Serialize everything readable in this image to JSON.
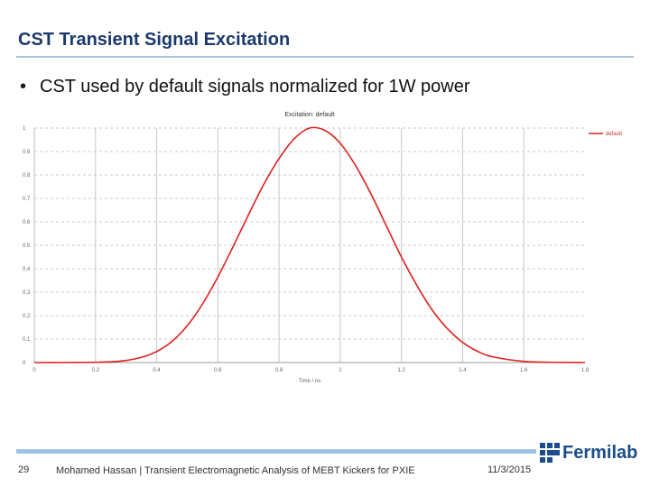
{
  "slide": {
    "title": "CST Transient Signal Excitation",
    "bullet": "CST used by default signals normalized for 1W power",
    "bullet_marker": "•"
  },
  "footer": {
    "slide_number": "29",
    "text": "Mohamed Hassan | Transient Electromagnetic Analysis of MEBT Kickers for PXIE",
    "date": "11/3/2015",
    "logo_text": "Fermilab",
    "logo_color": "#1a4d8c"
  },
  "chart_data": {
    "type": "line",
    "title": "Excitation: default",
    "xlabel": "Time / ns",
    "ylabel": "",
    "xlim": [
      0,
      1.8
    ],
    "ylim": [
      0,
      1
    ],
    "x_ticks": [
      "0",
      "0.2",
      "0.4",
      "0.6",
      "0.8",
      "1",
      "1.2",
      "1.4",
      "1.6",
      "1.8"
    ],
    "y_ticks": [
      "0",
      "0.1",
      "0.2",
      "0.3",
      "0.4",
      "0.5",
      "0.6",
      "0.7",
      "0.8",
      "0.9",
      "1"
    ],
    "grid": true,
    "legend_position": "top-right",
    "series": [
      {
        "name": "default",
        "color": "#e02020",
        "x": [
          0,
          0.1,
          0.2,
          0.25,
          0.3,
          0.35,
          0.4,
          0.45,
          0.5,
          0.55,
          0.6,
          0.65,
          0.7,
          0.75,
          0.8,
          0.85,
          0.9,
          0.95,
          1.0,
          1.05,
          1.1,
          1.15,
          1.2,
          1.25,
          1.3,
          1.35,
          1.4,
          1.45,
          1.5,
          1.6,
          1.7,
          1.8
        ],
        "y": [
          0,
          0,
          0.001,
          0.003,
          0.009,
          0.022,
          0.047,
          0.09,
          0.157,
          0.25,
          0.365,
          0.495,
          0.63,
          0.76,
          0.87,
          0.955,
          1.0,
          0.99,
          0.935,
          0.84,
          0.72,
          0.585,
          0.45,
          0.33,
          0.225,
          0.145,
          0.086,
          0.047,
          0.024,
          0.005,
          0.001,
          0
        ]
      }
    ]
  }
}
